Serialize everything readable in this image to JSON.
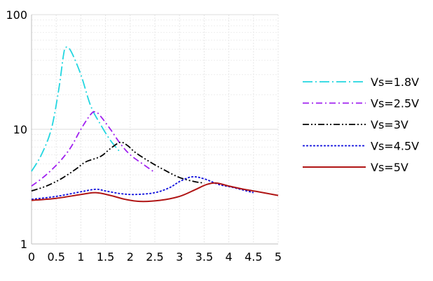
{
  "chart_data": {
    "type": "line",
    "title": "",
    "xlabel": "",
    "ylabel": "",
    "xlim": [
      0,
      5
    ],
    "ylim": [
      1,
      100
    ],
    "y_scale": "log",
    "grid": true,
    "legend_position": "right",
    "x_ticks": [
      "0",
      "0.5",
      "1",
      "1.5",
      "2",
      "2.5",
      "3",
      "3.5",
      "4",
      "4.5",
      "5"
    ],
    "y_ticks": [
      "1",
      "10",
      "100"
    ],
    "series": [
      {
        "name": "Vs=1.8V",
        "color": "#22d6e0",
        "dash": "long-dash-dot",
        "x": [
          0,
          0.2,
          0.4,
          0.55,
          0.65,
          0.7,
          0.8,
          1.0,
          1.2,
          1.4,
          1.6,
          1.8
        ],
        "y": [
          4.3,
          6.0,
          10.0,
          22.0,
          45.0,
          52.0,
          48.0,
          30.0,
          16.0,
          11.0,
          8.0,
          6.3
        ]
      },
      {
        "name": "Vs=2.5V",
        "color": "#a020f0",
        "dash": "dash-dot",
        "x": [
          0,
          0.2,
          0.4,
          0.6,
          0.8,
          1.0,
          1.2,
          1.3,
          1.4,
          1.6,
          1.8,
          2.0,
          2.25,
          2.5
        ],
        "y": [
          3.2,
          3.7,
          4.4,
          5.4,
          7.0,
          10.0,
          13.5,
          14.2,
          13.0,
          10.0,
          7.5,
          6.0,
          5.0,
          4.2
        ]
      },
      {
        "name": "Vs=3V",
        "color": "#000000",
        "dash": "dash-dot-dot",
        "x": [
          0,
          0.3,
          0.6,
          0.9,
          1.1,
          1.4,
          1.6,
          1.8,
          1.95,
          2.1,
          2.4,
          2.7,
          3.0,
          3.3,
          3.5
        ],
        "y": [
          2.9,
          3.2,
          3.7,
          4.5,
          5.2,
          5.8,
          6.8,
          7.7,
          7.2,
          6.3,
          5.2,
          4.4,
          3.8,
          3.5,
          3.4
        ]
      },
      {
        "name": "Vs=4.5V",
        "color": "#1010dd",
        "dash": "dotted",
        "x": [
          0,
          0.5,
          1.0,
          1.3,
          1.5,
          1.8,
          2.1,
          2.5,
          2.8,
          3.0,
          3.25,
          3.5,
          3.8,
          4.1,
          4.5
        ],
        "y": [
          2.45,
          2.6,
          2.85,
          3.0,
          2.9,
          2.75,
          2.7,
          2.8,
          3.1,
          3.5,
          3.85,
          3.7,
          3.3,
          3.1,
          2.8
        ]
      },
      {
        "name": "Vs=5V",
        "color": "#b01515",
        "dash": "solid",
        "x": [
          0,
          0.5,
          1.0,
          1.3,
          1.6,
          1.9,
          2.2,
          2.6,
          3.0,
          3.3,
          3.55,
          3.75,
          4.0,
          4.3,
          4.6,
          5.0
        ],
        "y": [
          2.4,
          2.5,
          2.7,
          2.8,
          2.65,
          2.45,
          2.35,
          2.4,
          2.6,
          2.95,
          3.3,
          3.4,
          3.2,
          3.0,
          2.85,
          2.65
        ]
      }
    ]
  }
}
